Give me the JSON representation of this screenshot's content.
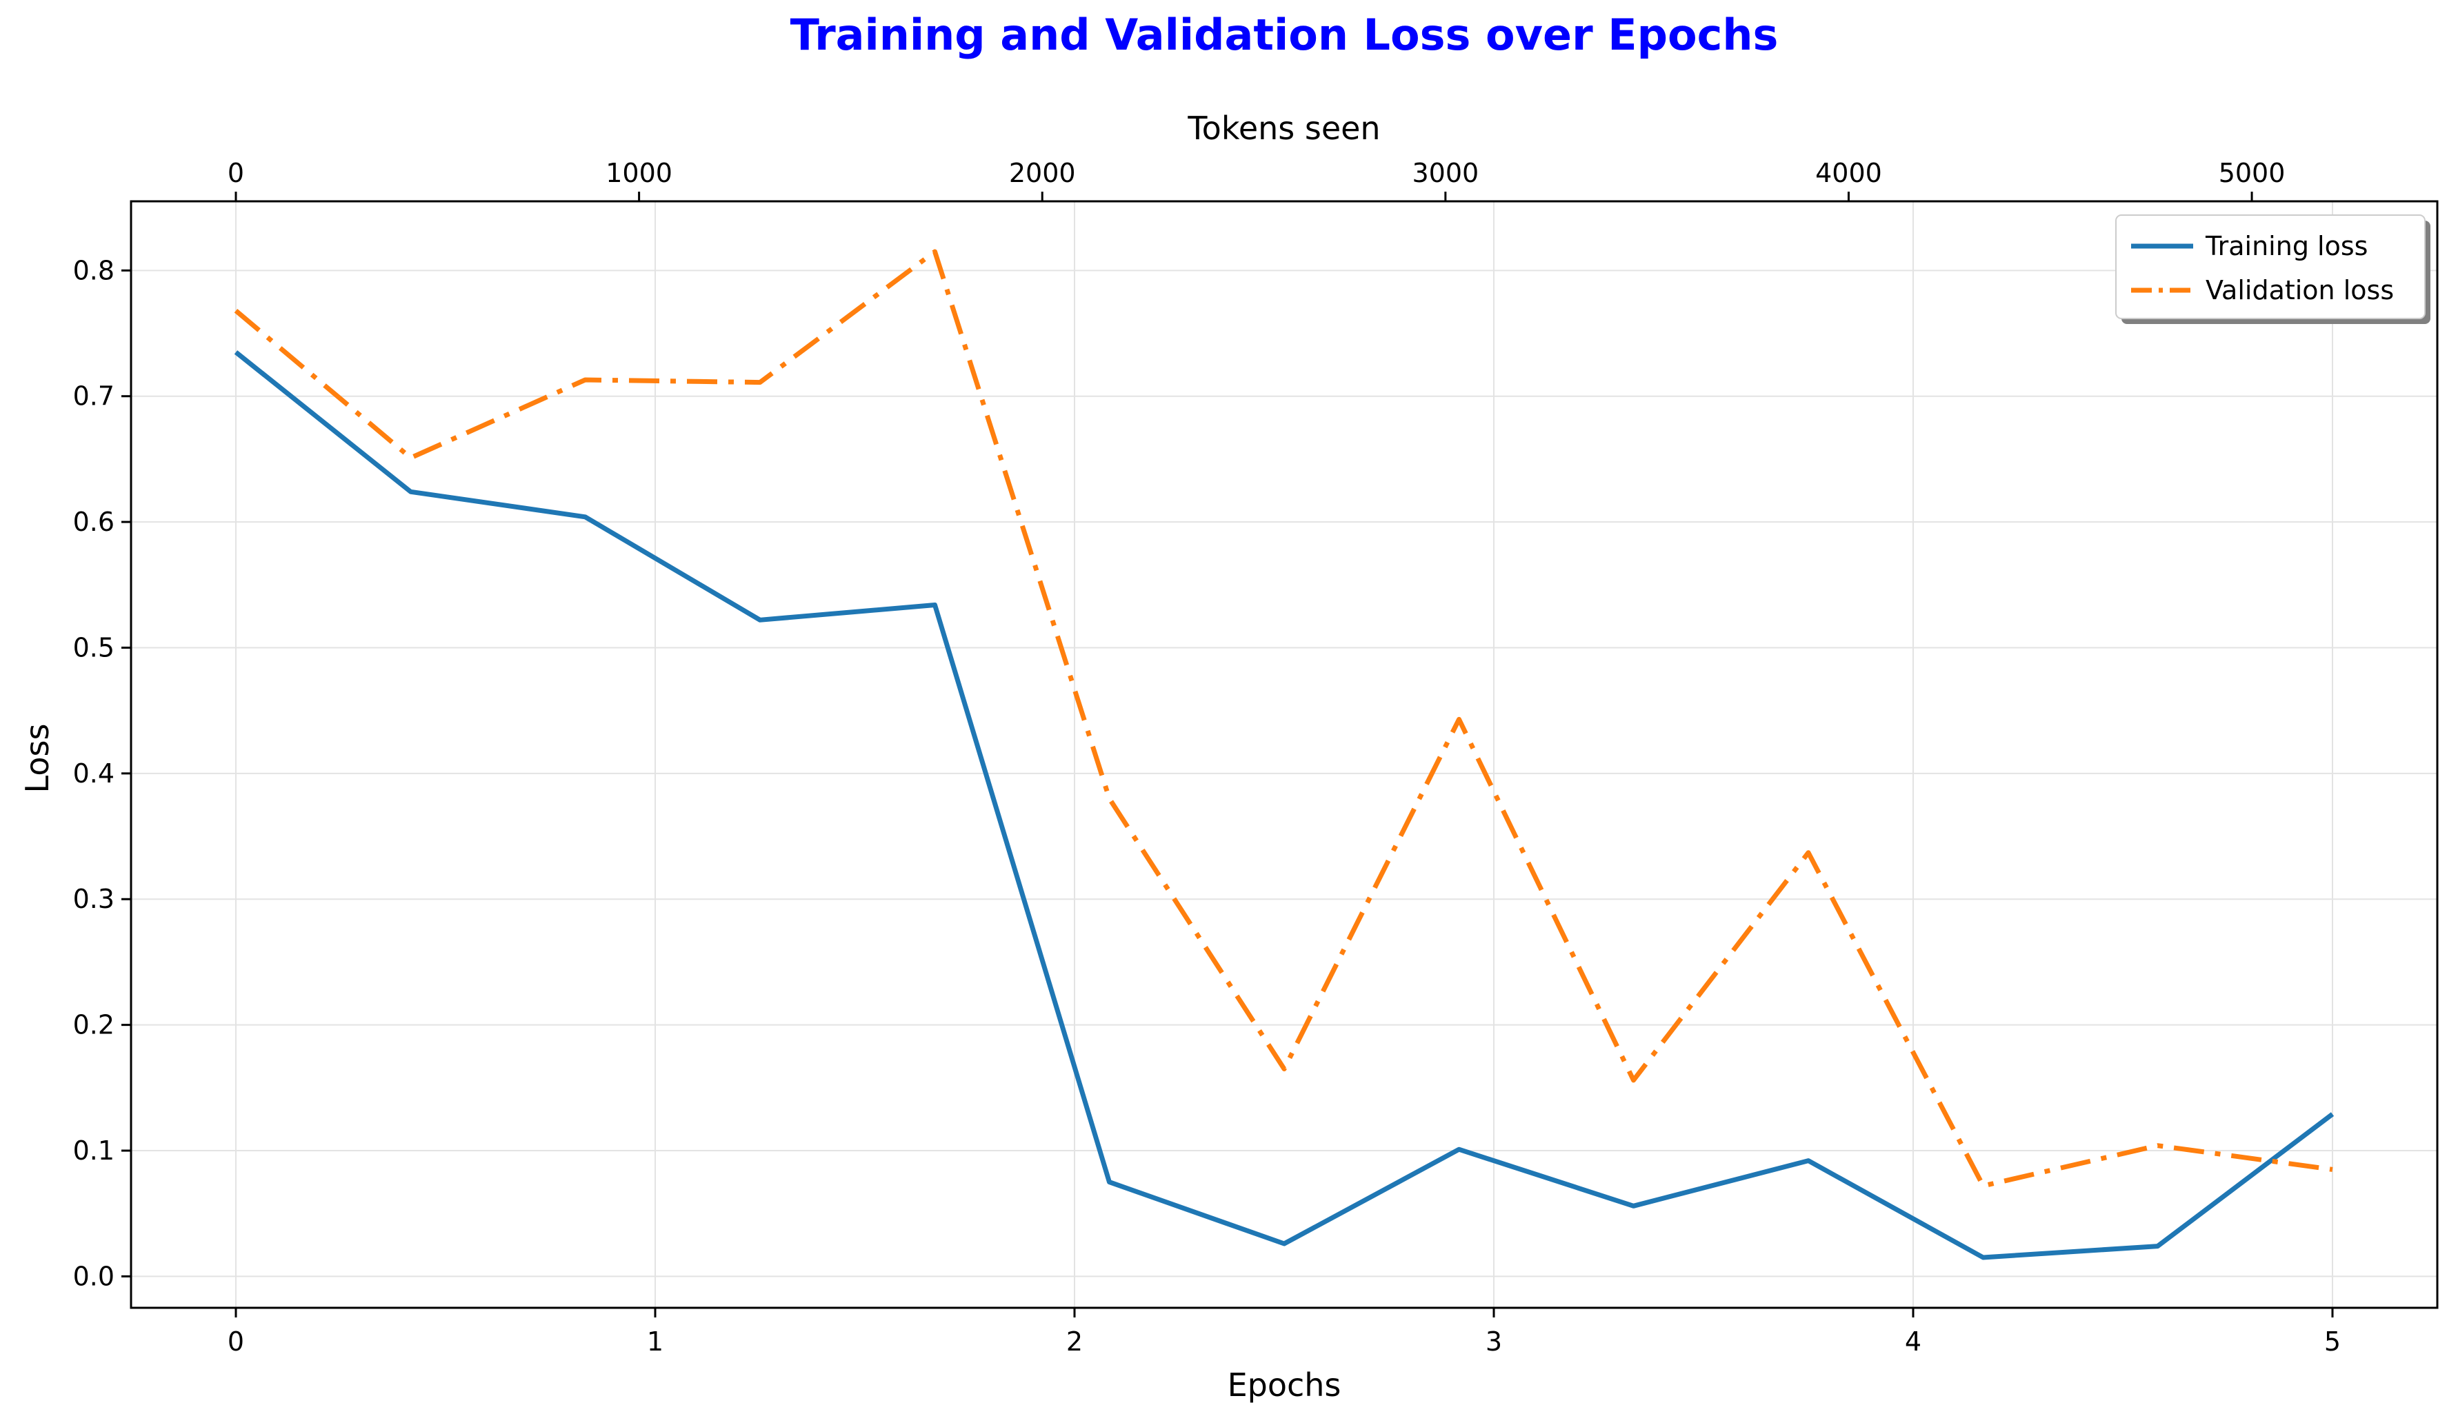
{
  "chart_data": {
    "type": "line",
    "title": "Training and Validation Loss over Epochs",
    "title_color": "#0000ff",
    "xlabel": "Epochs",
    "ylabel": "Loss",
    "x2label": "Tokens seen",
    "xlim": [
      -0.25,
      5.25
    ],
    "ylim": [
      -0.025,
      0.855
    ],
    "x2lim": [
      -260,
      5460
    ],
    "xticks": [
      0,
      1,
      2,
      3,
      4,
      5
    ],
    "yticks": [
      0.0,
      0.1,
      0.2,
      0.3,
      0.4,
      0.5,
      0.6,
      0.7,
      0.8
    ],
    "x2ticks": [
      0,
      1000,
      2000,
      3000,
      4000,
      5000
    ],
    "xtick_labels": [
      "0",
      "1",
      "2",
      "3",
      "4",
      "5"
    ],
    "ytick_labels": [
      "0.0",
      "0.1",
      "0.2",
      "0.3",
      "0.4",
      "0.5",
      "0.6",
      "0.7",
      "0.8"
    ],
    "x2tick_labels": [
      "0",
      "1000",
      "2000",
      "3000",
      "4000",
      "5000"
    ],
    "grid": true,
    "legend_position": "top-right",
    "x": [
      0,
      0.417,
      0.833,
      1.25,
      1.667,
      2.083,
      2.5,
      2.917,
      3.333,
      3.75,
      4.167,
      4.583,
      5.0
    ],
    "series": [
      {
        "name": "Training loss",
        "color": "#1f77b4",
        "style": "solid",
        "values": [
          0.735,
          0.624,
          0.604,
          0.522,
          0.534,
          0.075,
          0.026,
          0.101,
          0.056,
          0.092,
          0.015,
          0.024,
          0.129
        ]
      },
      {
        "name": "Validation loss",
        "color": "#ff7f0e",
        "style": "dashdot",
        "values": [
          0.768,
          0.651,
          0.713,
          0.711,
          0.815,
          0.38,
          0.165,
          0.443,
          0.156,
          0.337,
          0.072,
          0.104,
          0.085
        ]
      }
    ]
  }
}
